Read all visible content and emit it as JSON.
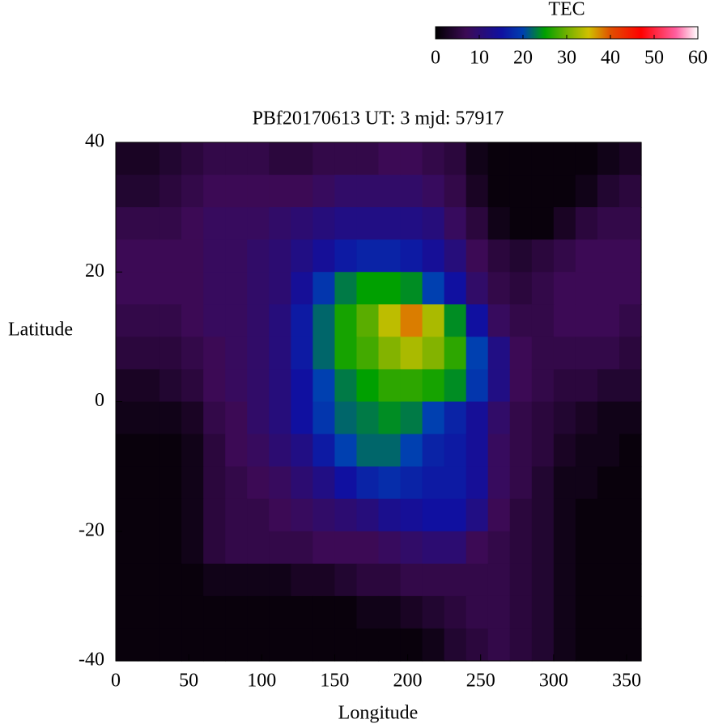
{
  "chart_data": {
    "type": "heatmap",
    "title": "PBf20170613  UT: 3  mjd: 57917",
    "x_label": "Longitude",
    "y_label": "Latitude",
    "colorbar_label": "TEC",
    "xlim": [
      0,
      360
    ],
    "ylim": [
      -40,
      40
    ],
    "clim": [
      0,
      60
    ],
    "xticks": [
      0,
      50,
      100,
      150,
      200,
      250,
      300,
      350
    ],
    "yticks": [
      -40,
      -20,
      0,
      20,
      40
    ],
    "cticks": [
      0,
      10,
      20,
      30,
      40,
      50,
      60
    ],
    "colormap": [
      {
        "value": 0,
        "color": "#000000"
      },
      {
        "value": 7,
        "color": "#3c0a55"
      },
      {
        "value": 15,
        "color": "#1010a0"
      },
      {
        "value": 20,
        "color": "#0040b0"
      },
      {
        "value": 25,
        "color": "#00a000"
      },
      {
        "value": 30,
        "color": "#70b000"
      },
      {
        "value": 35,
        "color": "#d0c000"
      },
      {
        "value": 40,
        "color": "#e05000"
      },
      {
        "value": 47,
        "color": "#ff0000"
      },
      {
        "value": 55,
        "color": "#ff60a0"
      },
      {
        "value": 60,
        "color": "#ffffff"
      }
    ],
    "x": [
      7.5,
      22.5,
      37.5,
      52.5,
      67.5,
      82.5,
      97.5,
      112.5,
      127.5,
      142.5,
      157.5,
      172.5,
      187.5,
      202.5,
      217.5,
      232.5,
      247.5,
      262.5,
      277.5,
      292.5,
      307.5,
      322.5,
      337.5,
      352.5
    ],
    "y": [
      37.5,
      32.5,
      27.5,
      22.5,
      17.5,
      12.5,
      7.5,
      2.5,
      -2.5,
      -7.5,
      -12.5,
      -17.5,
      -22.5,
      -27.5,
      -32.5,
      -37.5
    ],
    "z": [
      [
        3,
        3,
        4,
        5,
        6,
        6,
        6,
        5,
        5,
        6,
        6,
        6,
        7,
        7,
        6,
        5,
        2,
        1,
        1,
        1,
        1,
        1,
        2,
        3
      ],
      [
        4,
        4,
        5,
        6,
        7,
        7,
        7,
        7,
        7,
        8,
        9,
        9,
        9,
        9,
        8,
        6,
        3,
        1,
        1,
        1,
        1,
        2,
        4,
        5
      ],
      [
        6,
        6,
        6,
        7,
        8,
        8,
        8,
        9,
        10,
        11,
        12,
        12,
        12,
        12,
        11,
        8,
        5,
        2,
        1,
        1,
        3,
        5,
        6,
        6
      ],
      [
        7,
        7,
        7,
        7,
        8,
        8,
        9,
        10,
        12,
        14,
        16,
        17,
        17,
        16,
        14,
        11,
        7,
        5,
        4,
        5,
        6,
        7,
        7,
        7
      ],
      [
        7,
        7,
        7,
        7,
        8,
        8,
        9,
        10,
        14,
        19,
        23,
        25,
        25,
        24,
        20,
        15,
        9,
        6,
        5,
        6,
        7,
        7,
        7,
        7
      ],
      [
        6,
        6,
        6,
        7,
        8,
        8,
        9,
        11,
        16,
        22,
        26,
        29,
        34,
        38,
        33,
        24,
        15,
        8,
        6,
        6,
        7,
        7,
        7,
        6
      ],
      [
        5,
        5,
        5,
        6,
        7,
        8,
        9,
        11,
        16,
        22,
        26,
        28,
        31,
        33,
        31,
        27,
        20,
        12,
        7,
        6,
        6,
        6,
        6,
        5
      ],
      [
        3,
        3,
        4,
        5,
        7,
        8,
        9,
        11,
        15,
        20,
        23,
        25,
        27,
        27,
        26,
        24,
        19,
        12,
        7,
        6,
        5,
        5,
        4,
        4
      ],
      [
        2,
        2,
        2,
        3,
        6,
        7,
        9,
        11,
        15,
        19,
        22,
        23,
        24,
        23,
        20,
        17,
        14,
        9,
        6,
        5,
        4,
        3,
        2,
        2
      ],
      [
        1,
        1,
        1,
        2,
        5,
        7,
        8,
        10,
        12,
        16,
        20,
        22,
        22,
        20,
        17,
        16,
        14,
        8,
        6,
        5,
        3,
        2,
        2,
        1
      ],
      [
        1,
        1,
        1,
        2,
        5,
        6,
        7,
        8,
        10,
        12,
        15,
        17,
        18,
        17,
        16,
        16,
        14,
        8,
        6,
        4,
        2,
        2,
        1,
        1
      ],
      [
        1,
        1,
        1,
        2,
        5,
        6,
        6,
        7,
        8,
        9,
        10,
        11,
        13,
        14,
        15,
        15,
        12,
        7,
        5,
        4,
        2,
        1,
        1,
        1
      ],
      [
        1,
        1,
        1,
        2,
        5,
        6,
        6,
        6,
        6,
        7,
        7,
        7,
        8,
        9,
        10,
        10,
        7,
        6,
        5,
        4,
        2,
        1,
        1,
        1
      ],
      [
        1,
        1,
        1,
        1,
        2,
        2,
        2,
        2,
        3,
        3,
        4,
        5,
        5,
        6,
        6,
        6,
        6,
        6,
        5,
        4,
        2,
        1,
        1,
        1
      ],
      [
        1,
        1,
        1,
        1,
        1,
        1,
        1,
        1,
        1,
        1,
        1,
        2,
        2,
        3,
        4,
        5,
        6,
        6,
        5,
        4,
        2,
        1,
        1,
        1
      ],
      [
        1,
        1,
        1,
        1,
        1,
        1,
        1,
        1,
        1,
        1,
        1,
        1,
        1,
        1,
        2,
        4,
        5,
        6,
        5,
        4,
        2,
        1,
        1,
        1
      ]
    ]
  }
}
